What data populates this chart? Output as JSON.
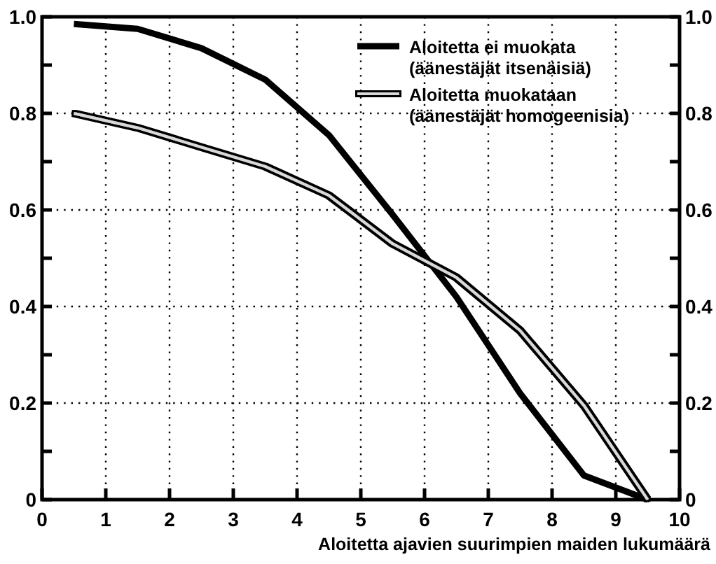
{
  "chart_data": {
    "type": "line",
    "xlabel": "Aloitetta ajavien suurimpien maiden lukumäärä",
    "x": [
      0.5,
      1.5,
      2.5,
      3.5,
      4.5,
      5.5,
      6.5,
      7.5,
      8.5,
      9.5
    ],
    "series": [
      {
        "name": "Aloitetta ei muokata\n(äänestäjät itsenäisiä)",
        "color": "#000000",
        "values": [
          0.985,
          0.975,
          0.935,
          0.87,
          0.755,
          0.59,
          0.42,
          0.22,
          0.05,
          0
        ]
      },
      {
        "name": "Aloitetta muokataan\n(äänestäjät homogeenisia)",
        "color": "#d9d9d9",
        "values": [
          0.8,
          0.77,
          0.73,
          0.69,
          0.63,
          0.53,
          0.46,
          0.35,
          0.195,
          0
        ]
      }
    ],
    "xlim": [
      0,
      10
    ],
    "xticks": [
      0,
      1,
      2,
      3,
      4,
      5,
      6,
      7,
      8,
      9,
      10
    ],
    "ylim": [
      0,
      1
    ],
    "yticks": [
      0,
      {
        "value": 0.1,
        "label": null
      },
      0.2,
      {
        "value": 0.3,
        "label": null
      },
      0.4,
      {
        "value": 0.5,
        "label": null
      },
      0.6,
      {
        "value": 0.7,
        "label": null
      },
      0.8,
      {
        "value": 0.9,
        "label": null
      },
      {
        "value": 1,
        "label": "1.0"
      }
    ],
    "y2lim": [
      0,
      1
    ],
    "y2ticks": [
      0,
      {
        "value": 0.1,
        "label": null
      },
      0.2,
      {
        "value": 0.3,
        "label": null
      },
      0.4,
      {
        "value": 0.5,
        "label": null
      },
      0.6,
      {
        "value": 0.7,
        "label": null
      },
      0.8,
      {
        "value": 0.9,
        "label": null
      },
      {
        "value": 1,
        "label": "1.0"
      }
    ],
    "grid": true,
    "legend": "top right",
    "marker": "none",
    "line_style": "solid"
  }
}
